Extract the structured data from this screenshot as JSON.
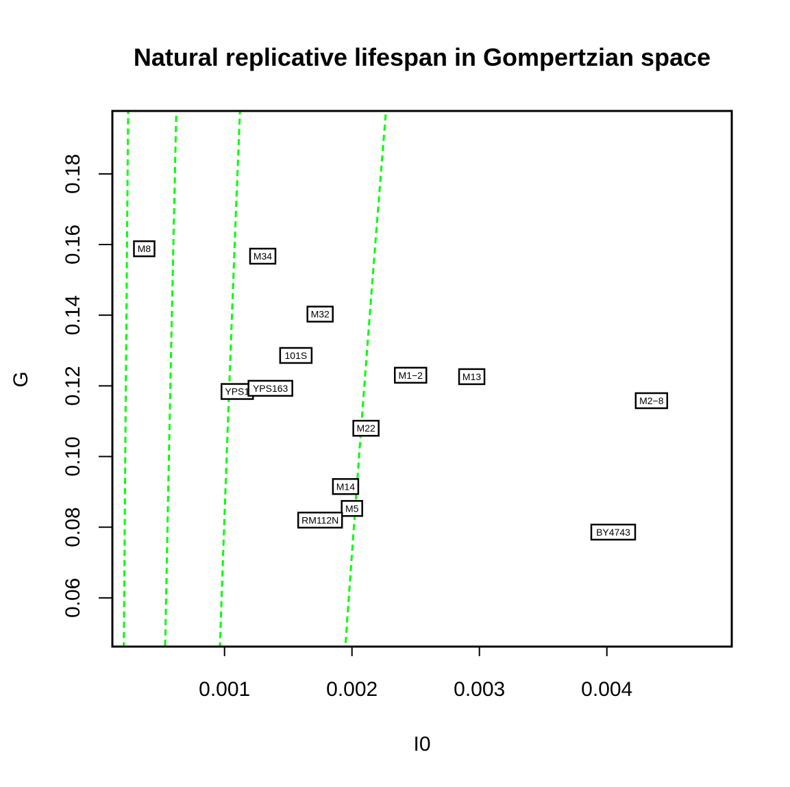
{
  "chart_data": {
    "type": "scatter",
    "title": "Natural replicative lifespan in Gompertzian space",
    "xlabel": "I0",
    "ylabel": "G",
    "xlim": [
      0.00012,
      0.00498
    ],
    "ylim": [
      0.0462,
      0.1978
    ],
    "x_ticks": [
      0.001,
      0.002,
      0.003,
      0.004
    ],
    "x_tick_labels": [
      "0.001",
      "0.002",
      "0.003",
      "0.004"
    ],
    "y_ticks": [
      0.06,
      0.08,
      0.1,
      0.12,
      0.14,
      0.16,
      0.18
    ],
    "y_tick_labels": [
      "0.06",
      "0.08",
      "0.10",
      "0.12",
      "0.14",
      "0.16",
      "0.18"
    ],
    "grid": false,
    "point_style": "boxed text labels",
    "points": [
      {
        "label": "M8",
        "x": 0.00037,
        "y": 0.1588
      },
      {
        "label": "M34",
        "x": 0.0013,
        "y": 0.1567
      },
      {
        "label": "M32",
        "x": 0.00175,
        "y": 0.1403
      },
      {
        "label": "101S",
        "x": 0.00156,
        "y": 0.1286
      },
      {
        "label": "M1−2",
        "x": 0.00246,
        "y": 0.123
      },
      {
        "label": "M13",
        "x": 0.00294,
        "y": 0.1226
      },
      {
        "label": "YPS1",
        "x": 0.0011,
        "y": 0.1184
      },
      {
        "label": "YPS163",
        "x": 0.00136,
        "y": 0.1193
      },
      {
        "label": "M2−8",
        "x": 0.00435,
        "y": 0.1158
      },
      {
        "label": "M22",
        "x": 0.00211,
        "y": 0.108
      },
      {
        "label": "M14",
        "x": 0.00195,
        "y": 0.0915
      },
      {
        "label": "M5",
        "x": 0.002,
        "y": 0.0853
      },
      {
        "label": "RM112N",
        "x": 0.00175,
        "y": 0.082
      },
      {
        "label": "BY4743",
        "x": 0.00405,
        "y": 0.0786
      }
    ],
    "curves": {
      "description": "iso-lifespan contours",
      "color": "#00ff00",
      "style": "dashed",
      "K_values": [
        5.5e-05,
        0.0002,
        0.00051,
        0.00092,
        0.00186
      ],
      "x_max": [
        0.0041,
        0.00498,
        0.00498,
        0.00498,
        0.00498
      ]
    },
    "colors": {
      "curve": "#00ff00",
      "axis": "#000000",
      "label_box": "#000000"
    }
  }
}
